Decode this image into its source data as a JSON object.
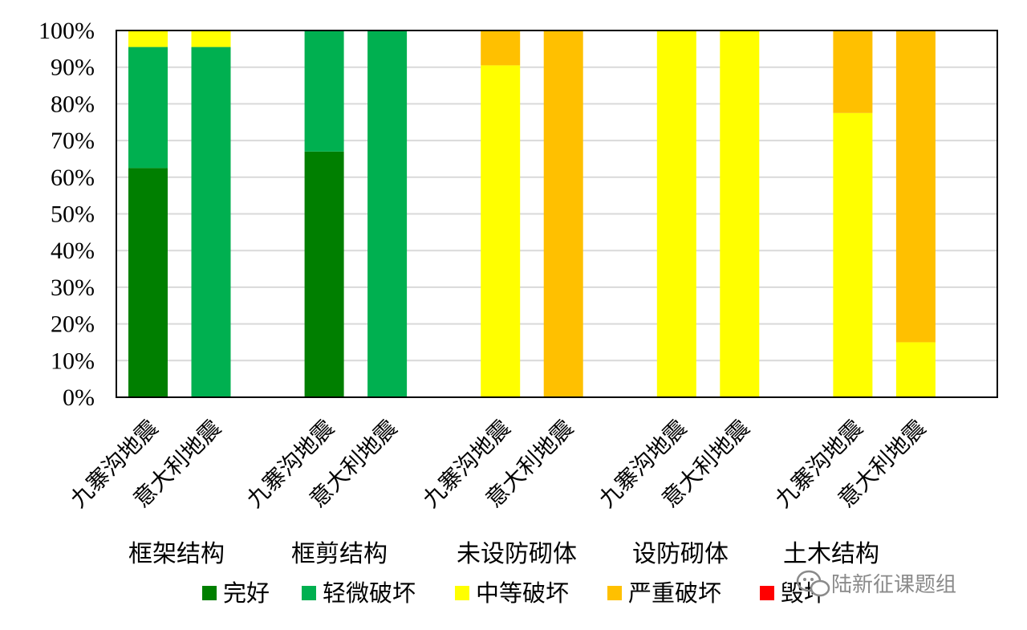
{
  "chart_data": {
    "type": "bar",
    "stacked": true,
    "groups": [
      {
        "label": "框架结构",
        "bars": [
          "九寨沟地震",
          "意大利地震"
        ]
      },
      {
        "label": "框剪结构",
        "bars": [
          "九寨沟地震",
          "意大利地震"
        ]
      },
      {
        "label": "未设防砌体",
        "bars": [
          "九寨沟地震",
          "意大利地震"
        ]
      },
      {
        "label": "设防砌体",
        "bars": [
          "九寨沟地震",
          "意大利地震"
        ]
      },
      {
        "label": "土木结构",
        "bars": [
          "九寨沟地震",
          "意大利地震"
        ]
      }
    ],
    "series": [
      {
        "name": "完好",
        "color": "#007F00",
        "values": [
          62.5,
          0,
          67,
          0,
          0,
          0,
          0,
          0,
          0,
          0
        ]
      },
      {
        "name": "轻微破坏",
        "color": "#00B050",
        "values": [
          33,
          95.5,
          33,
          100,
          0,
          0,
          0,
          0,
          0,
          0
        ]
      },
      {
        "name": "中等破坏",
        "color": "#FFFF00",
        "values": [
          4.5,
          4.5,
          0,
          0,
          90.5,
          0,
          100,
          100,
          77.5,
          15
        ]
      },
      {
        "name": "严重破坏",
        "color": "#FFC000",
        "values": [
          0,
          0,
          0,
          0,
          9.5,
          100,
          0,
          0,
          22.5,
          85
        ]
      },
      {
        "name": "毁坏",
        "color": "#FF0000",
        "values": [
          0,
          0,
          0,
          0,
          0,
          0,
          0,
          0,
          0,
          0
        ]
      }
    ],
    "y_ticks": [
      "0%",
      "10%",
      "20%",
      "30%",
      "40%",
      "50%",
      "60%",
      "70%",
      "80%",
      "90%",
      "100%"
    ],
    "ylim": [
      0,
      100
    ],
    "grid": true,
    "legend_position": "bottom"
  },
  "watermark": {
    "text": "陆新征课题组"
  }
}
